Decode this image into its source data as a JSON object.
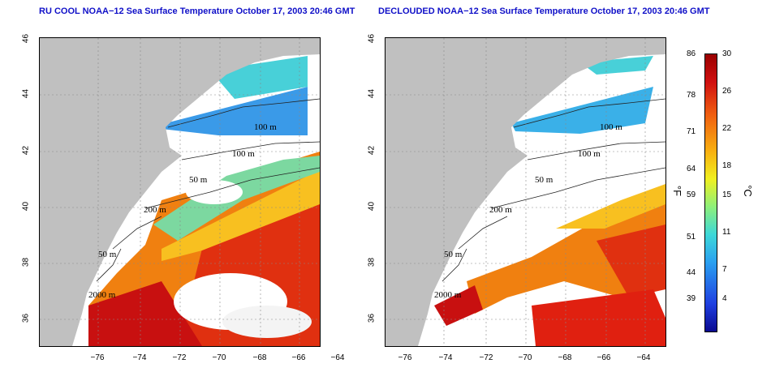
{
  "panels": [
    {
      "title": "RU COOL NOAA−12 Sea Surface Temperature October 17, 2003 20:46 GMT",
      "contour_labels": [
        "100 m",
        "100 m",
        "50 m",
        "200 m",
        "50 m",
        "2000 m"
      ]
    },
    {
      "title": "DECLOUDED NOAA−12 Sea Surface Temperature October 17, 2003 20:46 GMT",
      "contour_labels": [
        "100 m",
        "100 m",
        "50 m",
        "200 m",
        "50 m",
        "2000 m"
      ]
    }
  ],
  "axes": {
    "latitude_ticks": [
      "46",
      "44",
      "42",
      "40",
      "38",
      "36"
    ],
    "longitude_ticks": [
      "−76",
      "−74",
      "−72",
      "−70",
      "−68",
      "−66",
      "−64"
    ]
  },
  "colorbar": {
    "fahrenheit_unit": "°F",
    "celsius_unit": "°C",
    "fahrenheit_ticks": [
      "86",
      "78",
      "71",
      "64",
      "59",
      "51",
      "44",
      "39"
    ],
    "celsius_ticks": [
      "30",
      "26",
      "22",
      "18",
      "15",
      "11",
      "7",
      "4"
    ],
    "colors": {
      "min": "#0a0a90",
      "mid": "#f0f020",
      "max": "#9a0000"
    }
  },
  "colors": {
    "land": "#c0c0c0",
    "ocean_clouds": "#ffffff",
    "title": "#1010c8"
  }
}
